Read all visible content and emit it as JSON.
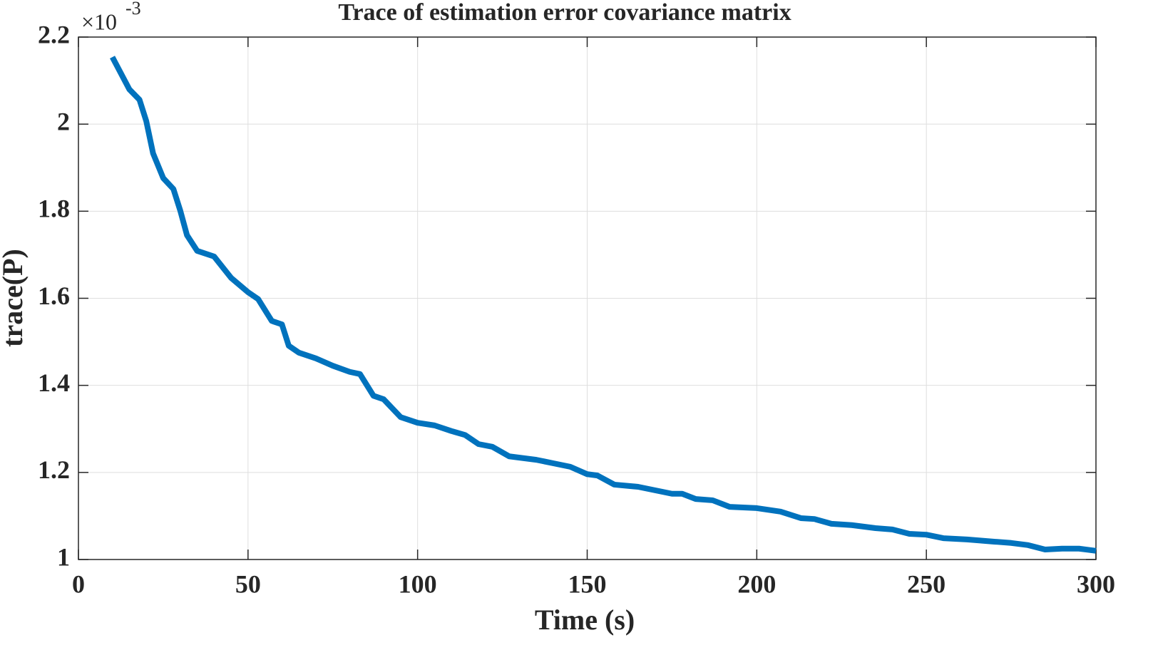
{
  "chart_data": {
    "type": "line",
    "title": "Trace of estimation error covariance matrix",
    "x_label": "Time (s)",
    "y_label": "trace(P)",
    "y_multiplier": {
      "base": "×10",
      "exponent": "-3"
    },
    "x": [
      10,
      15,
      18,
      20,
      22,
      25,
      28,
      30,
      32,
      35,
      40,
      45,
      50,
      53,
      57,
      60,
      62,
      65,
      70,
      75,
      80,
      83,
      87,
      90,
      95,
      100,
      105,
      110,
      114,
      118,
      122,
      127,
      135,
      140,
      145,
      150,
      153,
      158,
      165,
      170,
      175,
      178,
      182,
      187,
      192,
      200,
      207,
      213,
      217,
      222,
      228,
      235,
      240,
      245,
      250,
      255,
      262,
      270,
      275,
      280,
      285,
      290,
      295,
      300
    ],
    "series": [
      {
        "color": "#0072bd",
        "values": [
          2.154,
          2.08,
          2.056,
          2.007,
          1.933,
          1.876,
          1.851,
          1.802,
          1.745,
          1.709,
          1.696,
          1.647,
          1.614,
          1.598,
          1.548,
          1.54,
          1.491,
          1.475,
          1.462,
          1.445,
          1.431,
          1.426,
          1.376,
          1.368,
          1.327,
          1.314,
          1.308,
          1.295,
          1.286,
          1.265,
          1.259,
          1.237,
          1.229,
          1.221,
          1.213,
          1.196,
          1.193,
          1.172,
          1.167,
          1.159,
          1.151,
          1.151,
          1.139,
          1.136,
          1.121,
          1.118,
          1.11,
          1.095,
          1.093,
          1.082,
          1.079,
          1.072,
          1.069,
          1.059,
          1.057,
          1.049,
          1.046,
          1.041,
          1.038,
          1.033,
          1.023,
          1.025,
          1.025,
          1.02
        ]
      }
    ],
    "xlim": [
      0,
      300
    ],
    "xticks": [
      0,
      50,
      100,
      150,
      200,
      250,
      300
    ],
    "ylim": [
      1,
      2.2
    ],
    "yticks": [
      1,
      1.2,
      1.4,
      1.6,
      1.8,
      2,
      2.2
    ],
    "grid": true
  }
}
